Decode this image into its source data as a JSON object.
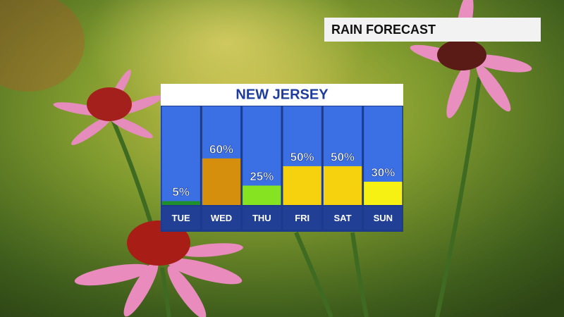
{
  "header": "RAIN FORECAST",
  "chart_data": {
    "type": "bar",
    "title": "NEW JERSEY",
    "categories": [
      "TUE",
      "WED",
      "THU",
      "FRI",
      "SAT",
      "SUN"
    ],
    "values": [
      5,
      60,
      25,
      50,
      50,
      30
    ],
    "value_labels": [
      "5%",
      "60%",
      "25%",
      "50%",
      "50%",
      "30%"
    ],
    "colors": [
      "#1f8f2c",
      "#d68f0c",
      "#86e321",
      "#f6d10d",
      "#f6d10d",
      "#f6f013"
    ],
    "ylim": [
      0,
      128
    ]
  }
}
